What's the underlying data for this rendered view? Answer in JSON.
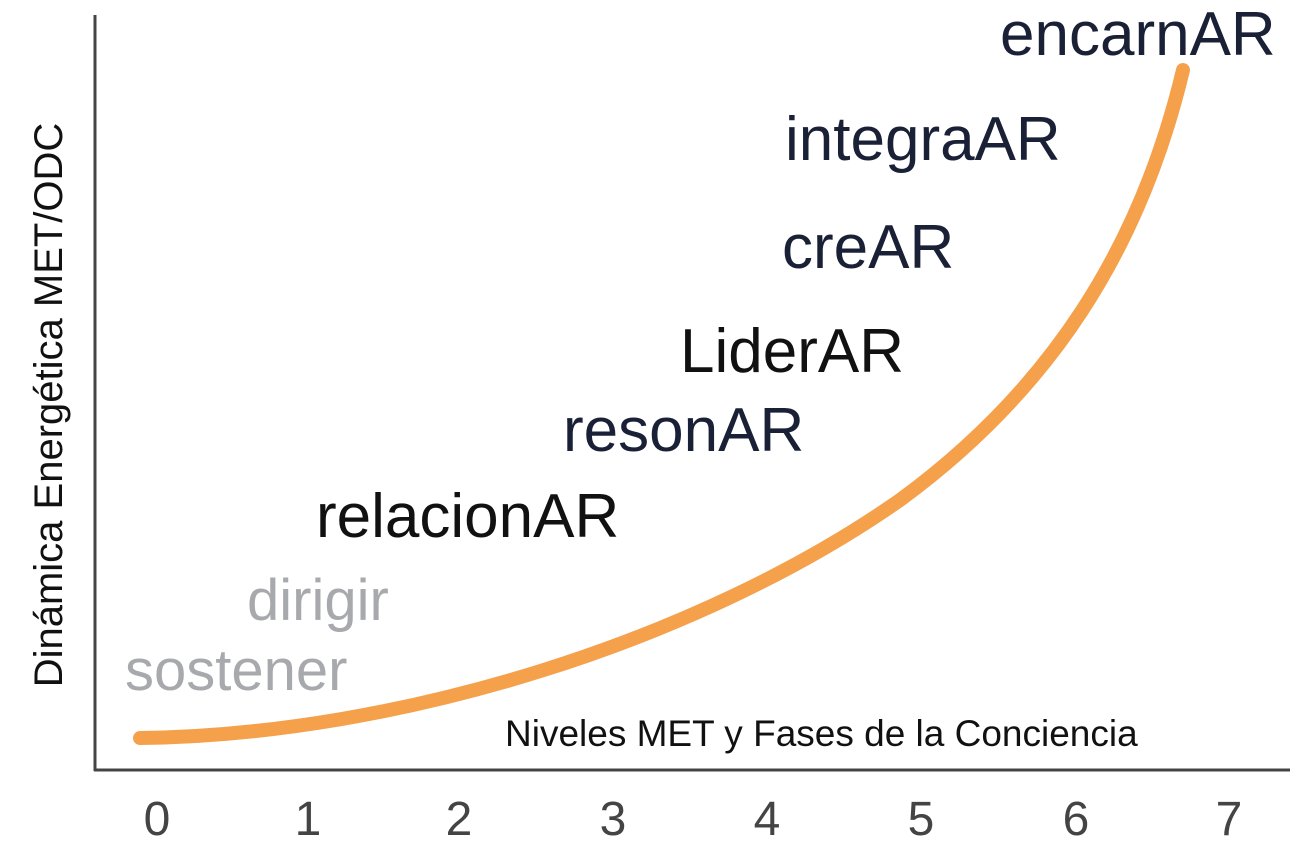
{
  "y_axis_label": "Dinámica Energética MET/ODC",
  "x_axis_label": "Niveles MET y Fases de la Conciencia",
  "x_ticks": [
    "0",
    "1",
    "2",
    "3",
    "4",
    "5",
    "6",
    "7"
  ],
  "phases": [
    {
      "label": "sostener"
    },
    {
      "label": "dirigir"
    },
    {
      "label": "relacionAR"
    },
    {
      "label": "resonAR"
    },
    {
      "label": "LiderAR"
    },
    {
      "label": "creAR"
    },
    {
      "label": "integraAR"
    },
    {
      "label": "encarnAR"
    }
  ]
}
